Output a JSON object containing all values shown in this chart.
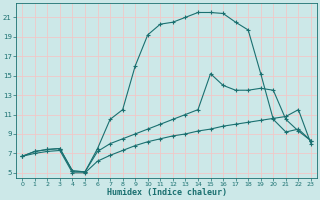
{
  "xlabel": "Humidex (Indice chaleur)",
  "bg_color": "#cce8e8",
  "grid_color": "#f0c8c8",
  "line_color": "#1a7070",
  "xlim": [
    -0.5,
    23.5
  ],
  "ylim": [
    4.5,
    22.5
  ],
  "xticks": [
    0,
    1,
    2,
    3,
    4,
    5,
    6,
    7,
    8,
    9,
    10,
    11,
    12,
    13,
    14,
    15,
    16,
    17,
    18,
    19,
    20,
    21,
    22,
    23
  ],
  "yticks": [
    5,
    7,
    9,
    11,
    13,
    15,
    17,
    19,
    21
  ],
  "curve_bell_x": [
    0,
    1,
    2,
    3,
    4,
    5,
    6,
    7,
    8,
    9,
    10,
    11,
    12,
    13,
    14,
    15,
    16,
    17,
    18,
    19,
    20,
    21,
    22,
    23
  ],
  "curve_bell_y": [
    6.7,
    7.2,
    7.4,
    7.5,
    5.2,
    5.1,
    7.5,
    10.5,
    11.5,
    16.0,
    19.2,
    20.3,
    20.5,
    21.0,
    21.5,
    21.5,
    21.4,
    20.5,
    19.7,
    15.2,
    10.5,
    9.2,
    9.5,
    8.3
  ],
  "curve_mid_x": [
    0,
    1,
    2,
    3,
    4,
    5,
    6,
    7,
    8,
    9,
    10,
    11,
    12,
    13,
    14,
    15,
    16,
    17,
    18,
    19,
    20,
    21,
    22,
    23
  ],
  "curve_mid_y": [
    6.7,
    7.2,
    7.4,
    7.5,
    5.2,
    5.1,
    7.2,
    8.0,
    8.5,
    9.0,
    9.5,
    10.0,
    10.5,
    11.0,
    11.5,
    15.2,
    14.0,
    13.5,
    13.5,
    13.7,
    13.5,
    10.5,
    9.3,
    8.3
  ],
  "curve_low_x": [
    0,
    1,
    2,
    3,
    4,
    5,
    6,
    7,
    8,
    9,
    10,
    11,
    12,
    13,
    14,
    15,
    16,
    17,
    18,
    19,
    20,
    21,
    22,
    23
  ],
  "curve_low_y": [
    6.7,
    7.0,
    7.2,
    7.3,
    5.0,
    5.0,
    6.2,
    6.8,
    7.3,
    7.8,
    8.2,
    8.5,
    8.8,
    9.0,
    9.3,
    9.5,
    9.8,
    10.0,
    10.2,
    10.4,
    10.6,
    10.8,
    11.5,
    8.0
  ]
}
